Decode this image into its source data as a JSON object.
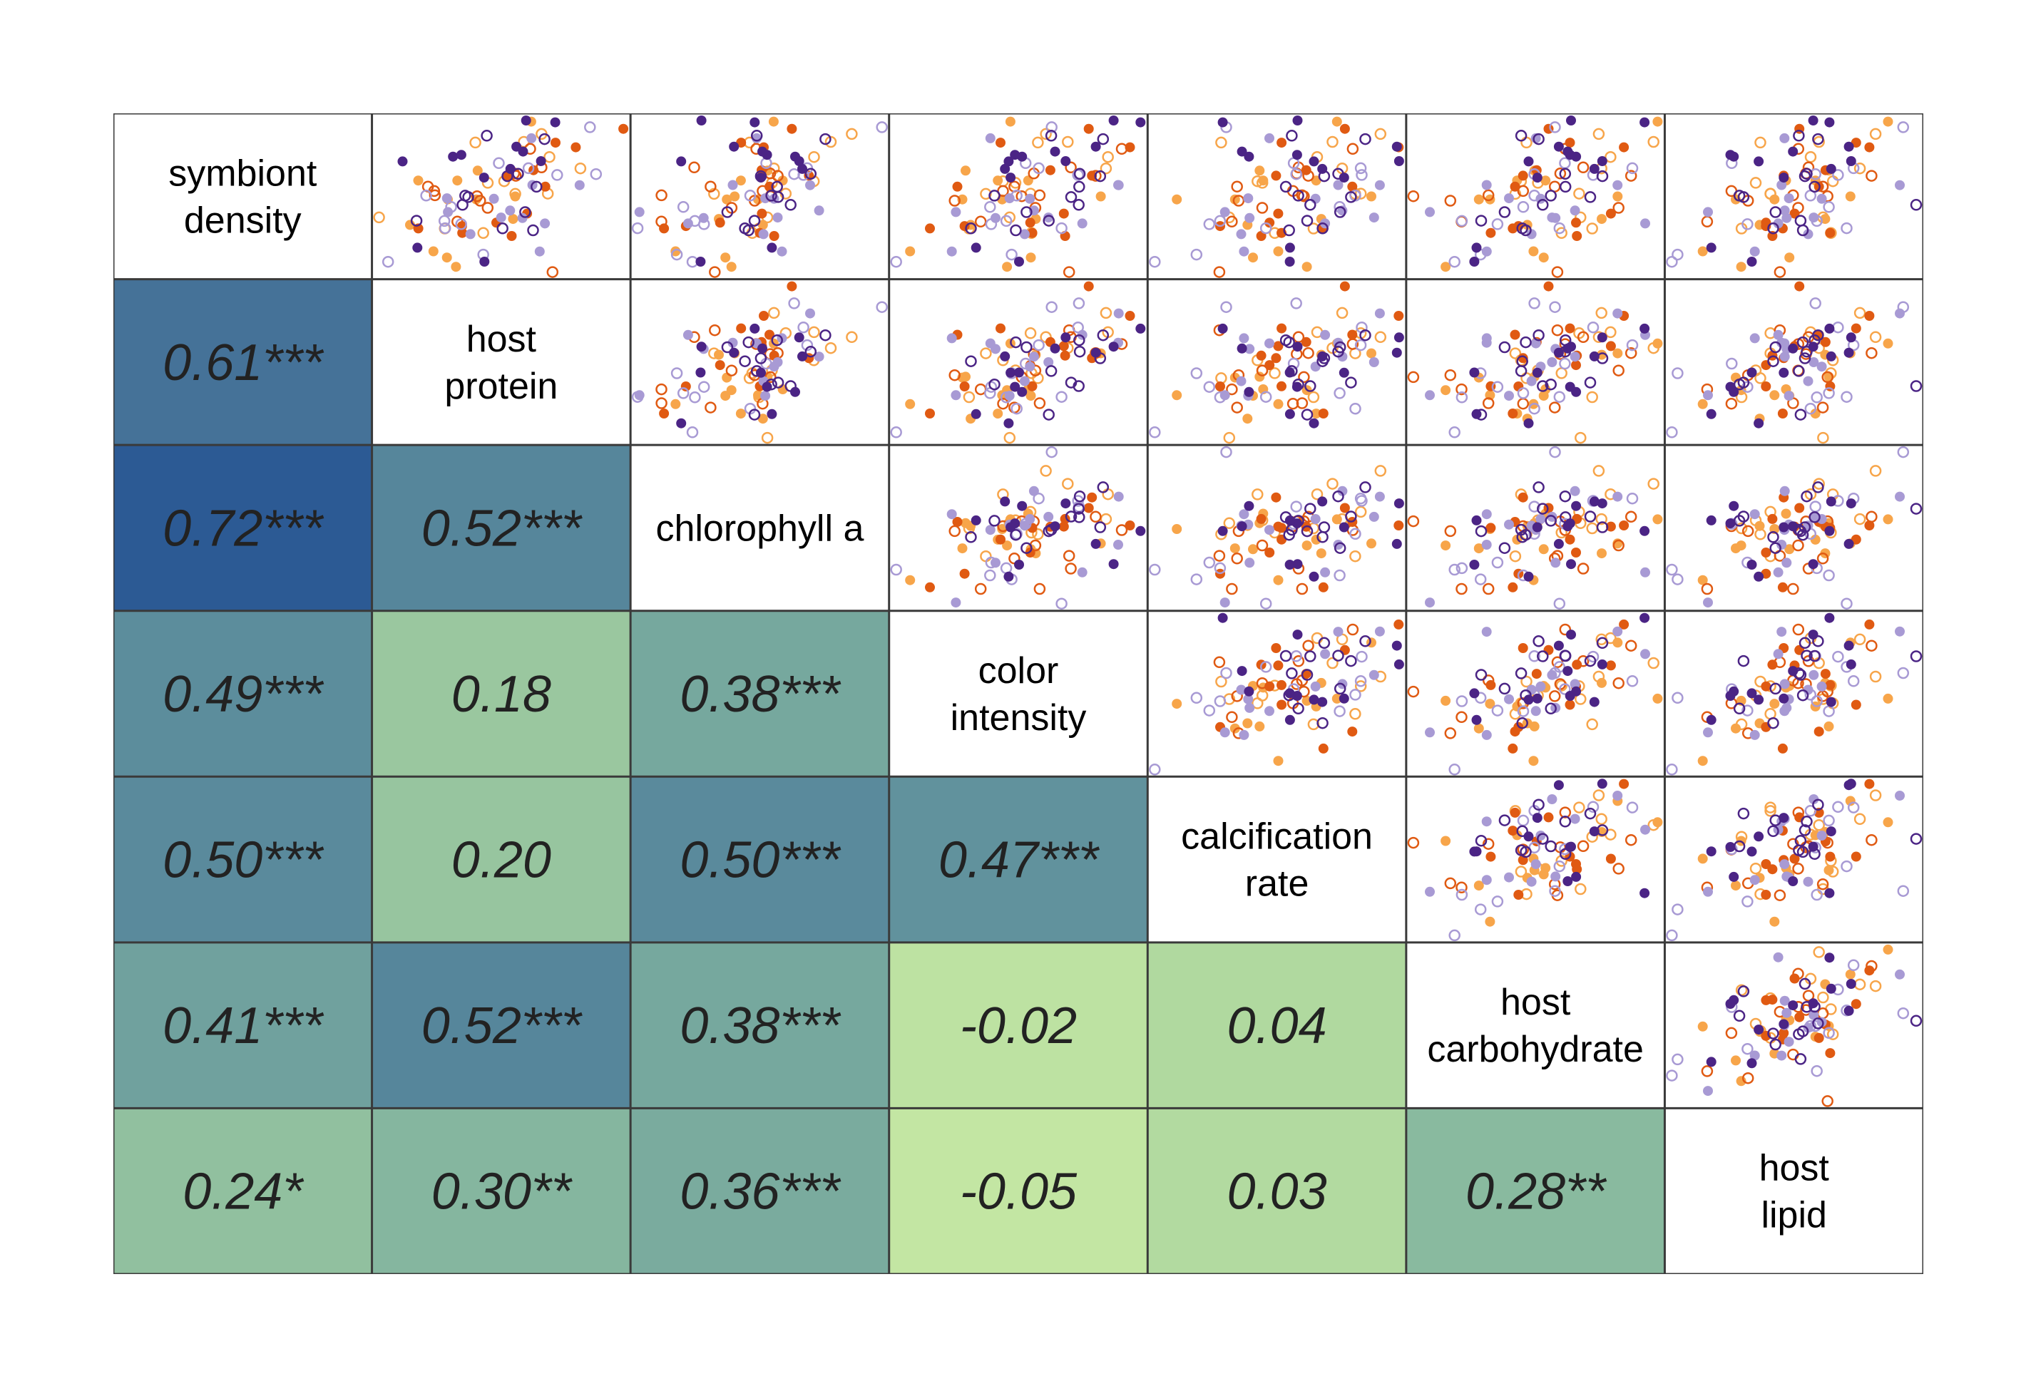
{
  "chart_data": {
    "type": "scatter-matrix",
    "variables": [
      [
        "symbiont",
        "density"
      ],
      [
        "host",
        "protein"
      ],
      [
        "chlorophyll a"
      ],
      [
        "color",
        "intensity"
      ],
      [
        "calcification",
        "rate"
      ],
      [
        "host",
        "carbohydrate"
      ],
      [
        "host",
        "lipid"
      ]
    ],
    "correlations": [
      {
        "row": 1,
        "col": 0,
        "r": 0.61,
        "label": "0.61***"
      },
      {
        "row": 2,
        "col": 0,
        "r": 0.72,
        "label": "0.72***"
      },
      {
        "row": 2,
        "col": 1,
        "r": 0.52,
        "label": "0.52***"
      },
      {
        "row": 3,
        "col": 0,
        "r": 0.49,
        "label": "0.49***"
      },
      {
        "row": 3,
        "col": 1,
        "r": 0.18,
        "label": "0.18"
      },
      {
        "row": 3,
        "col": 2,
        "r": 0.38,
        "label": "0.38***"
      },
      {
        "row": 4,
        "col": 0,
        "r": 0.5,
        "label": "0.50***"
      },
      {
        "row": 4,
        "col": 1,
        "r": 0.2,
        "label": "0.20"
      },
      {
        "row": 4,
        "col": 2,
        "r": 0.5,
        "label": "0.50***"
      },
      {
        "row": 4,
        "col": 3,
        "r": 0.47,
        "label": "0.47***"
      },
      {
        "row": 5,
        "col": 0,
        "r": 0.41,
        "label": "0.41***"
      },
      {
        "row": 5,
        "col": 1,
        "r": 0.52,
        "label": "0.52***"
      },
      {
        "row": 5,
        "col": 2,
        "r": 0.38,
        "label": "0.38***"
      },
      {
        "row": 5,
        "col": 3,
        "r": -0.02,
        "label": "-0.02"
      },
      {
        "row": 5,
        "col": 4,
        "r": 0.04,
        "label": "0.04"
      },
      {
        "row": 6,
        "col": 0,
        "r": 0.24,
        "label": "0.24*"
      },
      {
        "row": 6,
        "col": 1,
        "r": 0.3,
        "label": "0.30**"
      },
      {
        "row": 6,
        "col": 2,
        "r": 0.36,
        "label": "0.36***"
      },
      {
        "row": 6,
        "col": 3,
        "r": -0.05,
        "label": "-0.05"
      },
      {
        "row": 6,
        "col": 4,
        "r": 0.03,
        "label": "0.03"
      },
      {
        "row": 6,
        "col": 5,
        "r": 0.28,
        "label": "0.28**"
      }
    ],
    "point_groups": [
      {
        "color": "#f7a54a",
        "filled": true
      },
      {
        "color": "#f7a54a",
        "filled": false
      },
      {
        "color": "#e05a12",
        "filled": true
      },
      {
        "color": "#e05a12",
        "filled": false
      },
      {
        "color": "#a89ad4",
        "filled": true
      },
      {
        "color": "#a89ad4",
        "filled": false
      },
      {
        "color": "#4b2485",
        "filled": true
      },
      {
        "color": "#4b2485",
        "filled": false
      }
    ],
    "color_scale": {
      "stops": [
        {
          "r": -0.05,
          "color": "#c3e6a3"
        },
        {
          "r": 0.05,
          "color": "#aed79f"
        },
        {
          "r": 0.25,
          "color": "#8fbf9f"
        },
        {
          "r": 0.4,
          "color": "#72a49e"
        },
        {
          "r": 0.5,
          "color": "#5a8a9c"
        },
        {
          "r": 0.61,
          "color": "#457298"
        },
        {
          "r": 0.72,
          "color": "#2c5a94"
        }
      ]
    },
    "points_per_group": 12
  }
}
